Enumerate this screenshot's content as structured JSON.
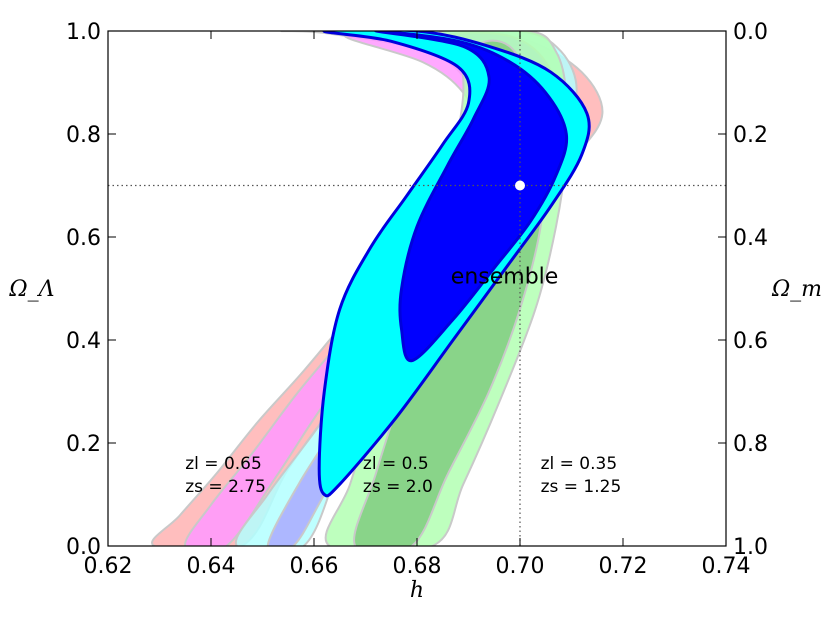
{
  "chart_data": {
    "type": "area",
    "x_axis": {
      "label": "h",
      "range": [
        0.62,
        0.74
      ],
      "ticks": [
        "0.62",
        "0.64",
        "0.66",
        "0.68",
        "0.70",
        "0.72",
        "0.74"
      ]
    },
    "y_axis_left": {
      "label": "Ω_Λ",
      "range": [
        0.0,
        1.0
      ],
      "ticks": [
        "0.0",
        "0.2",
        "0.4",
        "0.6",
        "0.8",
        "1.0"
      ]
    },
    "y_axis_right": {
      "label": "Ω_m",
      "range": [
        0.0,
        1.0
      ],
      "inverted": true,
      "ticks": [
        "0.0",
        "0.2",
        "0.4",
        "0.6",
        "0.8",
        "1.0"
      ]
    },
    "fiducial": {
      "h": 0.7,
      "omega_lambda": 0.7
    },
    "reference_lines": [
      {
        "orientation": "vertical",
        "value": 0.7,
        "style": "dotted"
      },
      {
        "orientation": "horizontal",
        "value": 0.7,
        "style": "dotted"
      }
    ],
    "series": [
      {
        "zl": "zl = 0.65",
        "zs": "zs = 2.75",
        "color_outer": "#ffb3b3",
        "color_inner": "#ff99ff",
        "outer": [
          [
            0.629,
            0.0
          ],
          [
            0.634,
            0.06
          ],
          [
            0.641,
            0.14
          ],
          [
            0.649,
            0.24
          ],
          [
            0.658,
            0.34
          ],
          [
            0.668,
            0.46
          ],
          [
            0.678,
            0.58
          ],
          [
            0.687,
            0.7
          ],
          [
            0.693,
            0.82
          ],
          [
            0.69,
            0.9
          ],
          [
            0.682,
            0.96
          ],
          [
            0.663,
            0.995
          ],
          [
            0.655,
            1.0
          ],
          [
            0.69,
            1.0
          ],
          [
            0.702,
            0.98
          ],
          [
            0.712,
            0.92
          ],
          [
            0.716,
            0.84
          ],
          [
            0.711,
            0.76
          ],
          [
            0.701,
            0.66
          ],
          [
            0.69,
            0.56
          ],
          [
            0.678,
            0.44
          ],
          [
            0.666,
            0.3
          ],
          [
            0.655,
            0.15
          ],
          [
            0.646,
            0.0
          ]
        ],
        "inner": [
          [
            0.635,
            0.0
          ],
          [
            0.64,
            0.08
          ],
          [
            0.648,
            0.18
          ],
          [
            0.657,
            0.3
          ],
          [
            0.667,
            0.42
          ],
          [
            0.677,
            0.55
          ],
          [
            0.686,
            0.68
          ],
          [
            0.692,
            0.8
          ],
          [
            0.689,
            0.88
          ],
          [
            0.681,
            0.94
          ],
          [
            0.666,
            0.99
          ],
          [
            0.676,
            1.0
          ],
          [
            0.69,
            0.99
          ],
          [
            0.702,
            0.95
          ],
          [
            0.709,
            0.87
          ],
          [
            0.707,
            0.78
          ],
          [
            0.698,
            0.68
          ],
          [
            0.687,
            0.57
          ],
          [
            0.675,
            0.43
          ],
          [
            0.663,
            0.29
          ],
          [
            0.653,
            0.14
          ],
          [
            0.643,
            0.0
          ]
        ]
      },
      {
        "zl": "zl = 0.5",
        "zs": "zs = 2.0",
        "color_outer": "#b3ffff",
        "color_inner": "#aaaaff",
        "outer": [
          [
            0.645,
            0.0
          ],
          [
            0.651,
            0.1
          ],
          [
            0.66,
            0.22
          ],
          [
            0.67,
            0.36
          ],
          [
            0.68,
            0.5
          ],
          [
            0.69,
            0.64
          ],
          [
            0.697,
            0.76
          ],
          [
            0.698,
            0.86
          ],
          [
            0.692,
            0.94
          ],
          [
            0.68,
            1.0
          ],
          [
            0.7,
            1.0
          ],
          [
            0.708,
            0.96
          ],
          [
            0.711,
            0.88
          ],
          [
            0.707,
            0.78
          ],
          [
            0.698,
            0.66
          ],
          [
            0.687,
            0.5
          ],
          [
            0.676,
            0.34
          ],
          [
            0.666,
            0.18
          ],
          [
            0.658,
            0.0
          ]
        ],
        "inner": [
          [
            0.651,
            0.0
          ],
          [
            0.657,
            0.12
          ],
          [
            0.666,
            0.26
          ],
          [
            0.676,
            0.42
          ],
          [
            0.686,
            0.58
          ],
          [
            0.694,
            0.72
          ],
          [
            0.697,
            0.84
          ],
          [
            0.692,
            0.93
          ],
          [
            0.686,
            0.99
          ],
          [
            0.698,
            0.99
          ],
          [
            0.705,
            0.94
          ],
          [
            0.707,
            0.86
          ],
          [
            0.702,
            0.76
          ],
          [
            0.693,
            0.62
          ],
          [
            0.682,
            0.44
          ],
          [
            0.671,
            0.26
          ],
          [
            0.662,
            0.1
          ],
          [
            0.656,
            0.0
          ]
        ]
      },
      {
        "zl": "zl = 0.35",
        "zs": "zs = 1.25",
        "color_outer": "#b3ffb3",
        "color_inner": "#80cc80",
        "outer": [
          [
            0.663,
            0.0
          ],
          [
            0.667,
            0.12
          ],
          [
            0.672,
            0.28
          ],
          [
            0.678,
            0.46
          ],
          [
            0.683,
            0.62
          ],
          [
            0.687,
            0.76
          ],
          [
            0.689,
            0.88
          ],
          [
            0.688,
            0.96
          ],
          [
            0.685,
            1.0
          ],
          [
            0.702,
            1.0
          ],
          [
            0.707,
            0.96
          ],
          [
            0.709,
            0.88
          ],
          [
            0.709,
            0.76
          ],
          [
            0.707,
            0.62
          ],
          [
            0.703,
            0.46
          ],
          [
            0.696,
            0.28
          ],
          [
            0.689,
            0.12
          ],
          [
            0.683,
            0.0
          ]
        ],
        "inner": [
          [
            0.668,
            0.0
          ],
          [
            0.672,
            0.14
          ],
          [
            0.677,
            0.3
          ],
          [
            0.682,
            0.46
          ],
          [
            0.687,
            0.62
          ],
          [
            0.691,
            0.76
          ],
          [
            0.693,
            0.88
          ],
          [
            0.692,
            0.97
          ],
          [
            0.698,
            0.97
          ],
          [
            0.703,
            0.88
          ],
          [
            0.705,
            0.76
          ],
          [
            0.704,
            0.62
          ],
          [
            0.7,
            0.46
          ],
          [
            0.694,
            0.3
          ],
          [
            0.686,
            0.14
          ],
          [
            0.679,
            0.0
          ]
        ]
      },
      {
        "name": "ensemble",
        "color_outer": "#00ffff",
        "color_inner": "#0000ff",
        "edge": "#0000dd",
        "outer": [
          [
            0.662,
            0.1
          ],
          [
            0.665,
            0.12
          ],
          [
            0.676,
            0.25
          ],
          [
            0.687,
            0.4
          ],
          [
            0.698,
            0.55
          ],
          [
            0.706,
            0.66
          ],
          [
            0.712,
            0.76
          ],
          [
            0.713,
            0.84
          ],
          [
            0.706,
            0.92
          ],
          [
            0.694,
            0.97
          ],
          [
            0.68,
            1.0
          ],
          [
            0.662,
            1.0
          ],
          [
            0.675,
            0.98
          ],
          [
            0.688,
            0.93
          ],
          [
            0.69,
            0.86
          ],
          [
            0.685,
            0.78
          ],
          [
            0.678,
            0.68
          ],
          [
            0.671,
            0.58
          ],
          [
            0.665,
            0.46
          ],
          [
            0.662,
            0.3
          ],
          [
            0.661,
            0.15
          ]
        ],
        "inner": [
          [
            0.679,
            0.36
          ],
          [
            0.687,
            0.44
          ],
          [
            0.695,
            0.54
          ],
          [
            0.702,
            0.63
          ],
          [
            0.707,
            0.72
          ],
          [
            0.709,
            0.8
          ],
          [
            0.705,
            0.88
          ],
          [
            0.698,
            0.94
          ],
          [
            0.688,
            0.98
          ],
          [
            0.672,
            1.0
          ],
          [
            0.689,
            0.97
          ],
          [
            0.694,
            0.91
          ],
          [
            0.691,
            0.83
          ],
          [
            0.686,
            0.74
          ],
          [
            0.68,
            0.62
          ],
          [
            0.677,
            0.5
          ],
          [
            0.677,
            0.42
          ]
        ]
      }
    ],
    "annotations": [
      {
        "text": "ensemble",
        "x": 0.697,
        "y": 0.51
      }
    ],
    "grid": false
  }
}
